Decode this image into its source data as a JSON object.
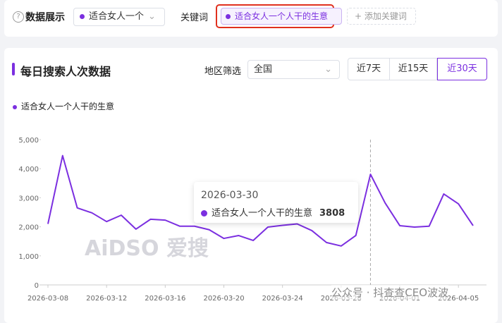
{
  "header": {
    "section_label": "数据展示",
    "dropdown": "适合女人一个",
    "keyword_label": "关键词",
    "keyword_tag": "适合女人一个人干的生意",
    "add_keyword": "添加关键词"
  },
  "card": {
    "title": "每日搜索人次数据",
    "region_label": "地区筛选",
    "region_value": "全国",
    "ranges": [
      "近7天",
      "近15天",
      "近30天"
    ]
  },
  "watermarks": [
    "AiDSO 爱搜",
    "公众号 · 抖查查CEO波波"
  ],
  "chart_data": {
    "type": "line",
    "categories": [
      "2026-03-08",
      null,
      null,
      null,
      "2026-03-12",
      null,
      null,
      null,
      "2026-03-16",
      null,
      null,
      null,
      "2026-03-20",
      null,
      null,
      null,
      "2026-03-24",
      null,
      null,
      null,
      "2026-03-28",
      null,
      null,
      null,
      "2026-04-01",
      null,
      null,
      null,
      "2026-04-05",
      null
    ],
    "series": [
      {
        "name": "适合女人一个人干的生意",
        "color": "#7b2fe0",
        "values": [
          2100,
          4450,
          2650,
          2480,
          2180,
          2400,
          1920,
          2260,
          2230,
          2020,
          2020,
          1900,
          1600,
          1700,
          1530,
          1990,
          2050,
          2100,
          1870,
          1460,
          1340,
          1700,
          3808,
          2820,
          2040,
          1990,
          2020,
          3130,
          2790,
          2040
        ]
      }
    ],
    "ylim": [
      0,
      5000
    ],
    "yticks": [
      0,
      {
        "value": 1000,
        "label": "1,000"
      },
      {
        "value": 2000,
        "label": "2,000"
      },
      {
        "value": 3000,
        "label": "3,000"
      },
      {
        "value": 4000,
        "label": "4,000"
      },
      {
        "value": 5000,
        "label": "5,000"
      }
    ],
    "grid": false,
    "tooltip": {
      "x": "2026-03-30",
      "value": 3808
    }
  }
}
